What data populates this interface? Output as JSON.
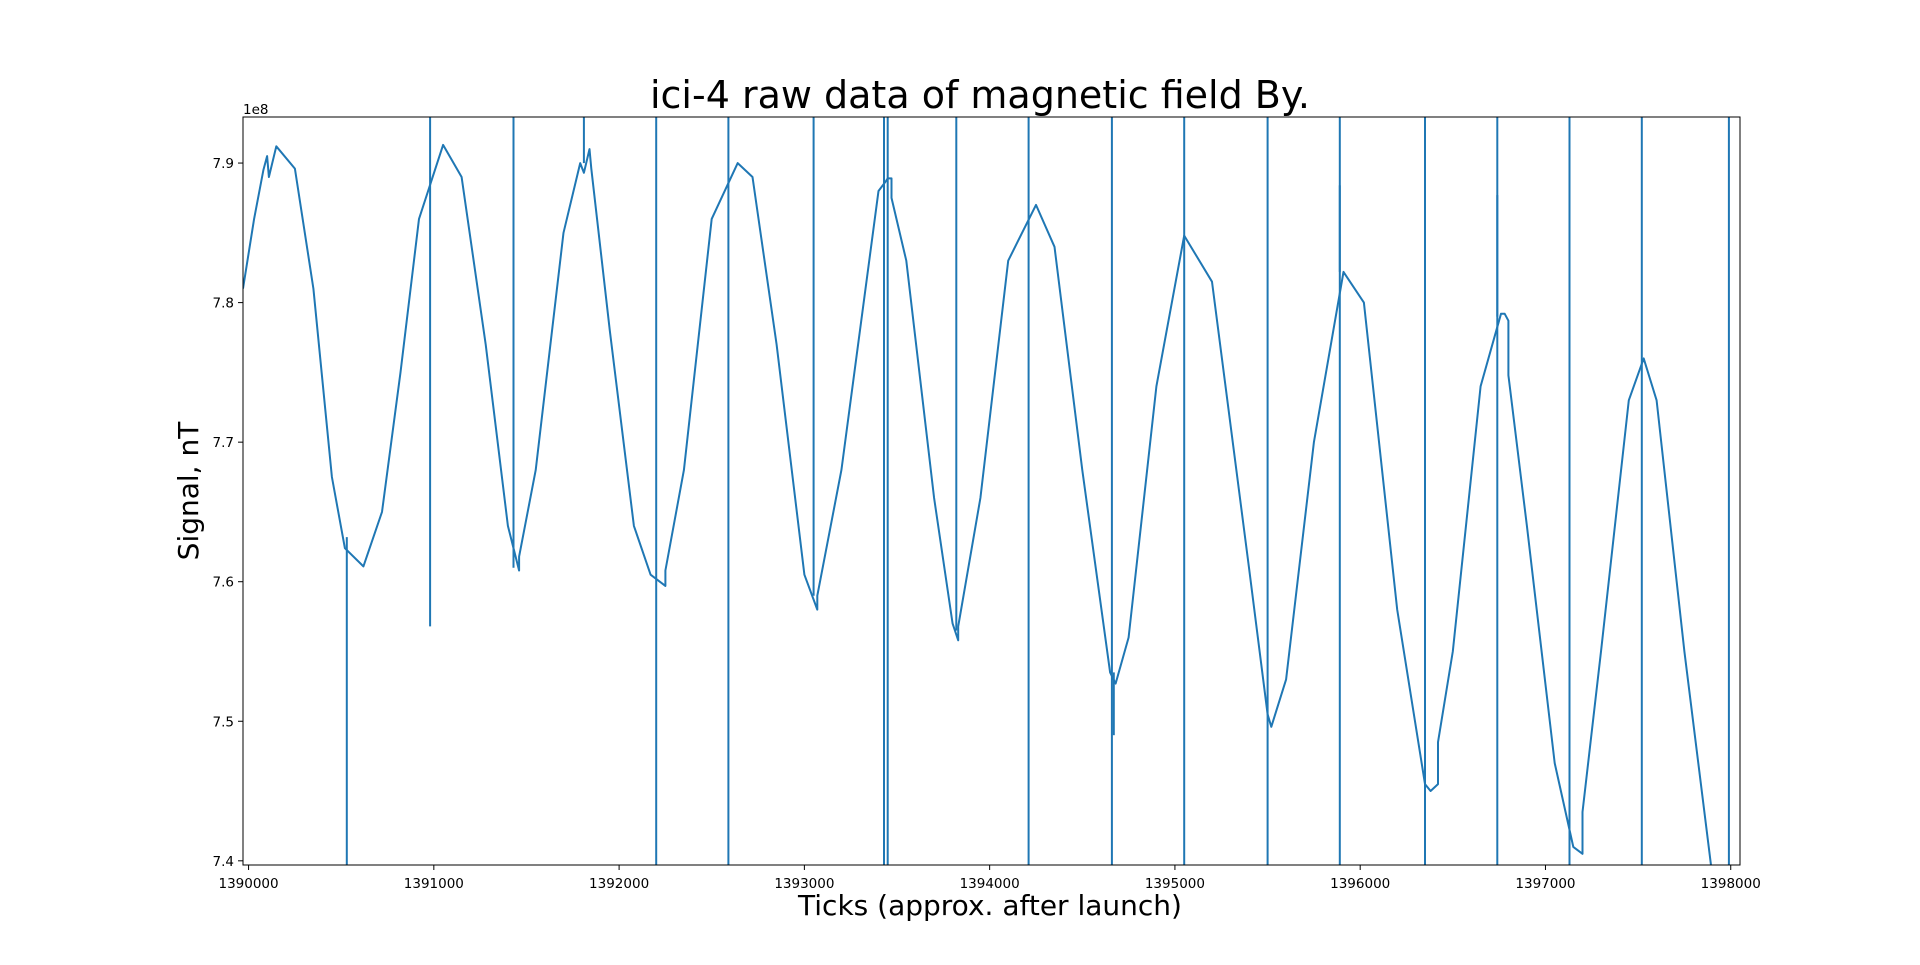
{
  "chart_data": {
    "type": "line",
    "title": "ici-4 raw data of magnetic field By.",
    "xlabel": "Ticks (approx. after launch)",
    "ylabel": "Signal, nT",
    "y_offset_label": "1e8",
    "xlim": [
      1389970,
      1398050
    ],
    "ylim": [
      7.397,
      7.933
    ],
    "x_ticks": [
      1390000,
      1391000,
      1392000,
      1393000,
      1394000,
      1395000,
      1396000,
      1397000,
      1398000
    ],
    "x_tick_labels": [
      "1390000",
      "1391000",
      "1392000",
      "1393000",
      "1394000",
      "1395000",
      "1396000",
      "1397000",
      "1398000"
    ],
    "y_ticks": [
      7.4,
      7.5,
      7.6,
      7.7,
      7.8,
      7.9
    ],
    "y_tick_labels": [
      "7.4",
      "7.5",
      "7.6",
      "7.7",
      "7.8",
      "7.9"
    ],
    "grid": false,
    "color": "#1f77b4",
    "series": [
      {
        "points": [
          [
            1389970,
            7.81
          ],
          [
            1390030,
            7.86
          ],
          [
            1390080,
            7.895
          ],
          [
            1390100,
            7.905
          ],
          [
            1390110,
            7.89
          ],
          [
            1390150,
            7.912
          ],
          [
            1390250,
            7.896
          ],
          [
            1390350,
            7.81
          ],
          [
            1390450,
            7.675
          ],
          [
            1390520,
            7.624
          ],
          [
            1390620,
            7.611
          ],
          [
            1390720,
            7.65
          ],
          [
            1390820,
            7.75
          ],
          [
            1390920,
            7.86
          ],
          [
            1391050,
            7.913
          ],
          [
            1391150,
            7.89
          ],
          [
            1391280,
            7.77
          ],
          [
            1391400,
            7.64
          ],
          [
            1391460,
            7.608
          ],
          [
            1391460,
            7.618
          ],
          [
            1391550,
            7.68
          ],
          [
            1391700,
            7.85
          ],
          [
            1391790,
            7.9
          ],
          [
            1391810,
            7.893
          ],
          [
            1391840,
            7.91
          ],
          [
            1391850,
            7.896
          ],
          [
            1391950,
            7.78
          ],
          [
            1392080,
            7.64
          ],
          [
            1392170,
            7.605
          ],
          [
            1392250,
            7.597
          ],
          [
            1392250,
            7.608
          ],
          [
            1392350,
            7.68
          ],
          [
            1392500,
            7.86
          ],
          [
            1392640,
            7.9
          ],
          [
            1392720,
            7.89
          ],
          [
            1392850,
            7.77
          ],
          [
            1393000,
            7.605
          ],
          [
            1393070,
            7.58
          ],
          [
            1393070,
            7.59
          ],
          [
            1393200,
            7.68
          ],
          [
            1393400,
            7.88
          ],
          [
            1393440,
            7.887
          ],
          [
            1393450,
            7.889
          ],
          [
            1393470,
            7.889
          ],
          [
            1393470,
            7.875
          ],
          [
            1393550,
            7.83
          ],
          [
            1393700,
            7.66
          ],
          [
            1393800,
            7.57
          ],
          [
            1393830,
            7.558
          ],
          [
            1393830,
            7.568
          ],
          [
            1393950,
            7.66
          ],
          [
            1394100,
            7.83
          ],
          [
            1394250,
            7.87
          ],
          [
            1394350,
            7.84
          ],
          [
            1394500,
            7.68
          ],
          [
            1394650,
            7.535
          ],
          [
            1394680,
            7.527
          ],
          [
            1394750,
            7.56
          ],
          [
            1394900,
            7.74
          ],
          [
            1395050,
            7.848
          ],
          [
            1395200,
            7.815
          ],
          [
            1395400,
            7.61
          ],
          [
            1395500,
            7.505
          ],
          [
            1395520,
            7.496
          ],
          [
            1395600,
            7.53
          ],
          [
            1395750,
            7.7
          ],
          [
            1395910,
            7.822
          ],
          [
            1396020,
            7.8
          ],
          [
            1396200,
            7.58
          ],
          [
            1396350,
            7.455
          ],
          [
            1396380,
            7.45
          ],
          [
            1396420,
            7.455
          ],
          [
            1396420,
            7.485
          ],
          [
            1396500,
            7.55
          ],
          [
            1396650,
            7.74
          ],
          [
            1396760,
            7.792
          ],
          [
            1396780,
            7.792
          ],
          [
            1396800,
            7.787
          ],
          [
            1396800,
            7.748
          ],
          [
            1396900,
            7.64
          ],
          [
            1397050,
            7.47
          ],
          [
            1397150,
            7.41
          ],
          [
            1397200,
            7.405
          ],
          [
            1397200,
            7.435
          ],
          [
            1397300,
            7.55
          ],
          [
            1397450,
            7.73
          ],
          [
            1397530,
            7.76
          ],
          [
            1397600,
            7.73
          ],
          [
            1397750,
            7.55
          ],
          [
            1397900,
            7.39
          ]
        ]
      }
    ],
    "spikes": [
      {
        "x": 1390530,
        "y_from": 7.632,
        "y_to": 7.397
      },
      {
        "x": 1390980,
        "y_from": 7.933,
        "y_to": 7.568
      },
      {
        "x": 1391430,
        "y_from": 7.933,
        "y_to": 7.61
      },
      {
        "x": 1391810,
        "y_from": 7.933,
        "y_to": 7.9
      },
      {
        "x": 1392200,
        "y_from": 7.933,
        "y_to": 7.397
      },
      {
        "x": 1392590,
        "y_from": 7.933,
        "y_to": 7.397
      },
      {
        "x": 1393050,
        "y_from": 7.933,
        "y_to": 7.59
      },
      {
        "x": 1393430,
        "y_from": 7.933,
        "y_to": 7.397
      },
      {
        "x": 1393450,
        "y_from": 7.933,
        "y_to": 7.397
      },
      {
        "x": 1393820,
        "y_from": 7.933,
        "y_to": 7.565
      },
      {
        "x": 1394210,
        "y_from": 7.933,
        "y_to": 7.397
      },
      {
        "x": 1394660,
        "y_from": 7.933,
        "y_to": 7.397
      },
      {
        "x": 1394670,
        "y_from": 7.535,
        "y_to": 7.49
      },
      {
        "x": 1395050,
        "y_from": 7.933,
        "y_to": 7.397
      },
      {
        "x": 1395500,
        "y_from": 7.933,
        "y_to": 7.397
      },
      {
        "x": 1395890,
        "y_from": 7.933,
        "y_to": 7.397
      },
      {
        "x": 1395890,
        "y_from": 7.884,
        "y_to": 7.822
      },
      {
        "x": 1396350,
        "y_from": 7.933,
        "y_to": 7.397
      },
      {
        "x": 1396740,
        "y_from": 7.933,
        "y_to": 7.397
      },
      {
        "x": 1396740,
        "y_from": 7.877,
        "y_to": 7.79
      },
      {
        "x": 1397130,
        "y_from": 7.933,
        "y_to": 7.397
      },
      {
        "x": 1397520,
        "y_from": 7.933,
        "y_to": 7.397
      },
      {
        "x": 1397990,
        "y_from": 7.933,
        "y_to": 7.397
      }
    ]
  }
}
